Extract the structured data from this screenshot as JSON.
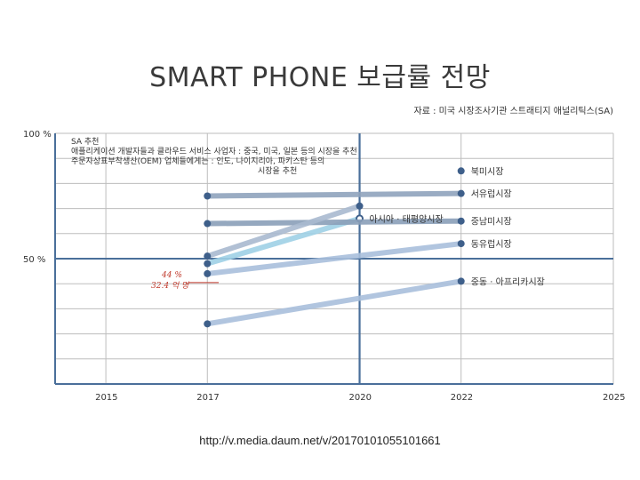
{
  "page": {
    "title": "SMART PHONE 보급률 전망",
    "source": "자료 : 미국 시장조사기관 스트래티지 애널리틱스(SA)",
    "footer_url": "http://v.media.daum.net/v/20170101055101661"
  },
  "chart_data": {
    "type": "line",
    "x_ticks": [
      "2015",
      "2017",
      "2020",
      "2022",
      "2025"
    ],
    "xlim": [
      2014,
      2025
    ],
    "ylim": [
      0,
      100
    ],
    "y_labels": [
      {
        "value": 100,
        "label": "100 %"
      },
      {
        "value": 50,
        "label": "50 %"
      }
    ],
    "grid": true,
    "notes": [
      "SA 추천",
      "애플리케이션 개발자들과 클라우드 서비스 사업자 : 중국, 미국, 일본 등의 시장을 추천",
      "주문자상표부착생산(OEM) 업체들에게는            : 인도, 나이지리아, 파키스탄 등의",
      "시장을 추천"
    ],
    "series": [
      {
        "name": "북미시장",
        "x": [
          2022
        ],
        "y": [
          85
        ],
        "color": "#6f8fb0"
      },
      {
        "name": "서유럽시장",
        "points": [
          [
            2017,
            75
          ],
          [
            2022,
            76
          ]
        ],
        "color": "#8fa3bd"
      },
      {
        "name": "아시아 · 태평양시장",
        "points": [
          [
            2017,
            48
          ],
          [
            2020,
            66
          ]
        ],
        "color": "#9fd0e6"
      },
      {
        "name": "중남미시장",
        "points": [
          [
            2017,
            64
          ],
          [
            2022,
            65
          ]
        ],
        "color": "#8a9fb8"
      },
      {
        "name": "동유럽시장",
        "points": [
          [
            2017,
            44
          ],
          [
            2022,
            56
          ]
        ],
        "color": "#a9bfdc"
      },
      {
        "name": "중동 · 아프리카시장",
        "points": [
          [
            2017,
            24
          ],
          [
            2022,
            41
          ]
        ],
        "color": "#a9bfdc"
      },
      {
        "name": "",
        "points": [
          [
            2017,
            51
          ],
          [
            2020,
            71
          ]
        ],
        "color": "#a9b9cf"
      }
    ],
    "annotations": [
      "44 %",
      "32.4 억 명"
    ]
  }
}
